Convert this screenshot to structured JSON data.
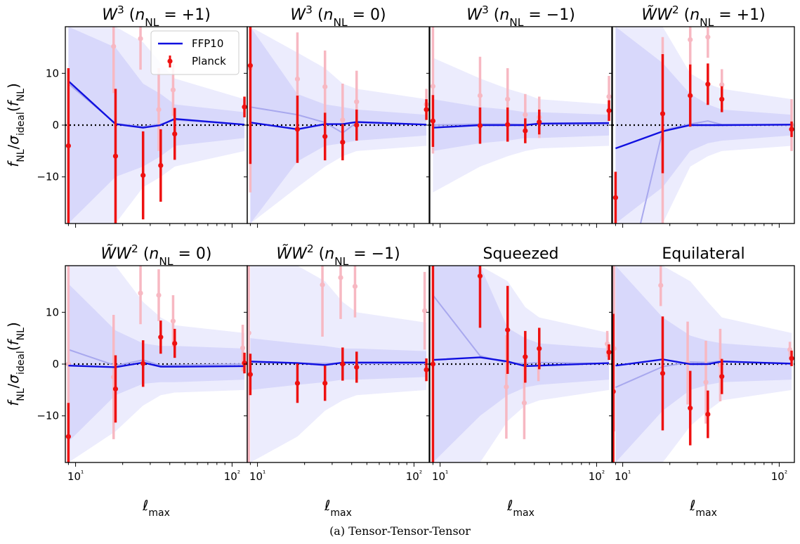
{
  "caption": "(a) Tensor-Tensor-Tensor",
  "colors": {
    "ffp10": "#1010e0",
    "ffp10_faint": "#a8a8ee",
    "band_inner": "#d8d8fb",
    "band_outer": "#ececfd",
    "planck": "#ee1111",
    "planck_faint": "#f7b8c2"
  },
  "chart_data": {
    "type": "scatter",
    "xscale": "log",
    "xlim": [
      8.6,
      125
    ],
    "ylim": [
      -19,
      19
    ],
    "xticks": [
      10,
      100
    ],
    "xtick_labels": [
      "10¹",
      "10²"
    ],
    "yticks": [
      -10,
      0,
      10
    ],
    "ytick_labels": [
      "−10",
      "0",
      "10"
    ],
    "xlabel": "ℓmax",
    "ylabel": "fNL/σideal(fNL)",
    "legend": {
      "position": "top-right of first panel",
      "entries": [
        "FFP10",
        "Planck"
      ]
    },
    "reference_line": 0,
    "panels": [
      {
        "title": "W³ (nNL = +1)",
        "ffp10": {
          "x": [
            9,
            18,
            27,
            35,
            43,
            120
          ],
          "y": [
            8.5,
            0.2,
            -0.5,
            0,
            1.2,
            0.1
          ]
        },
        "ffp10_faint": {
          "x": [
            9,
            18,
            27,
            35,
            43,
            120
          ],
          "y": [
            8,
            0.3,
            -0.3,
            0.2,
            1.0,
            0.1
          ]
        },
        "band_inner": {
          "x": [
            9,
            18,
            27,
            35,
            43,
            120
          ],
          "lo": [
            -19,
            -10,
            -8,
            -6,
            -4,
            -2.5
          ],
          "hi": [
            19,
            15,
            8,
            6,
            4,
            2.5
          ]
        },
        "band_outer": {
          "x": [
            9,
            18,
            27,
            35,
            43,
            120
          ],
          "lo": [
            -19,
            -19,
            -12,
            -10,
            -8,
            -5
          ],
          "hi": [
            19,
            19,
            16,
            12,
            9,
            5
          ]
        },
        "planck": {
          "x": [
            9,
            18,
            27,
            35,
            43,
            120
          ],
          "y": [
            -4,
            -6,
            -9.7,
            -7.8,
            -1.7,
            3.5
          ],
          "err": [
            15,
            13,
            8.5,
            7,
            5,
            2
          ]
        },
        "planck_faint": {
          "x": [
            17.5,
            26,
            34,
            42
          ],
          "y": [
            15.2,
            16.7,
            3,
            6.8
          ],
          "err": [
            9,
            6,
            8,
            5
          ]
        }
      },
      {
        "title": "W³ (nNL = 0)",
        "ffp10": {
          "x": [
            9,
            18,
            27,
            35,
            43,
            120
          ],
          "y": [
            0.5,
            -0.8,
            0.2,
            0.2,
            0.6,
            0.1
          ]
        },
        "ffp10_faint": {
          "x": [
            9,
            18,
            27,
            35,
            43,
            120
          ],
          "y": [
            3.5,
            2,
            0.5,
            -1.5,
            0.5,
            0.1
          ]
        },
        "band_inner": {
          "x": [
            9,
            18,
            27,
            35,
            43,
            120
          ],
          "lo": [
            -19,
            -7,
            -4,
            -3.5,
            -3,
            -2
          ],
          "hi": [
            19,
            6,
            4,
            3.5,
            3,
            2
          ]
        },
        "band_outer": {
          "x": [
            9,
            18,
            27,
            35,
            43,
            120
          ],
          "lo": [
            -19,
            -12,
            -8,
            -6,
            -5,
            -4
          ],
          "hi": [
            19,
            14,
            11,
            8,
            7,
            5
          ]
        },
        "planck": {
          "x": [
            9,
            18,
            27,
            35,
            43,
            120
          ],
          "y": [
            11.5,
            -0.8,
            -2.2,
            -3.3,
            0,
            3
          ],
          "err": [
            19,
            6.5,
            4.6,
            3.5,
            3,
            2
          ]
        },
        "planck_faint": {
          "x": [
            9,
            18,
            27,
            35,
            43,
            120
          ],
          "y": [
            11,
            8.9,
            7.4,
            1,
            4.5,
            4
          ],
          "err": [
            24,
            9,
            7,
            7,
            6,
            3
          ]
        }
      },
      {
        "title": "W³ (nNL = −1)",
        "ffp10": {
          "x": [
            9,
            18,
            27,
            35,
            43,
            120
          ],
          "y": [
            -0.5,
            0,
            0,
            0,
            0.3,
            0.4
          ]
        },
        "ffp10_faint": {
          "x": [
            9,
            18,
            27,
            35,
            43,
            120
          ],
          "y": [
            0,
            0.2,
            0.2,
            0.1,
            0.2,
            0.2
          ]
        },
        "band_inner": {
          "x": [
            9,
            18,
            27,
            35,
            43,
            120
          ],
          "lo": [
            -5,
            -3.5,
            -3,
            -2.5,
            -2.5,
            -2
          ],
          "hi": [
            5,
            3.5,
            3,
            2.5,
            2.5,
            2
          ]
        },
        "band_outer": {
          "x": [
            9,
            18,
            27,
            35,
            43,
            120
          ],
          "lo": [
            -13,
            -8,
            -6,
            -5,
            -4.5,
            -4
          ],
          "hi": [
            13,
            9,
            7,
            6,
            5,
            4
          ]
        },
        "planck": {
          "x": [
            9,
            18,
            27,
            35,
            43,
            120
          ],
          "y": [
            0.8,
            -0.1,
            0.1,
            -1.1,
            0.6,
            2.8
          ],
          "err": [
            5,
            3.5,
            3.3,
            2.4,
            2.4,
            2
          ]
        },
        "planck_faint": {
          "x": [
            9,
            18,
            27,
            35,
            43,
            120
          ],
          "y": [
            7.5,
            5.7,
            5,
            2,
            1.5,
            5.5
          ],
          "err": [
            13,
            7.5,
            6,
            4,
            4,
            4
          ]
        }
      },
      {
        "title": "W̃W² (nNL = +1)",
        "ffp10": {
          "x": [
            9,
            18,
            27,
            35,
            43,
            120
          ],
          "y": [
            -4.5,
            -1.2,
            0,
            0,
            0,
            0.1
          ]
        },
        "ffp10_faint": {
          "x": [
            13,
            18,
            27,
            35,
            43,
            120
          ],
          "y": [
            -19,
            -1,
            0.2,
            0.8,
            0.1,
            0
          ]
        },
        "band_inner": {
          "x": [
            9,
            18,
            27,
            35,
            43,
            120
          ],
          "lo": [
            -19,
            -12,
            -5,
            -3.5,
            -3,
            -2
          ],
          "hi": [
            19,
            12,
            6,
            4,
            3,
            2
          ]
        },
        "band_outer": {
          "x": [
            9,
            18,
            27,
            35,
            43,
            120
          ],
          "lo": [
            -19,
            -19,
            -8,
            -6,
            -5,
            -4
          ],
          "hi": [
            19,
            19,
            10,
            8,
            7,
            5
          ]
        },
        "planck": {
          "x": [
            9,
            18,
            27,
            35,
            43,
            120
          ],
          "y": [
            -14,
            2.2,
            5.7,
            7.9,
            5,
            -0.8
          ],
          "err": [
            5,
            11.5,
            6,
            4,
            2.5,
            1.5
          ]
        },
        "planck_faint": {
          "x": [
            18,
            27,
            35,
            43,
            120
          ],
          "y": [
            -1,
            16.5,
            17,
            7.8,
            0
          ],
          "err": [
            18,
            5,
            4,
            3,
            5
          ]
        }
      },
      {
        "title": "W̃W² (nNL = 0)",
        "ffp10": {
          "x": [
            9,
            18,
            27,
            35,
            43,
            120
          ],
          "y": [
            -0.3,
            -0.6,
            0.3,
            -0.5,
            -0.5,
            -0.4
          ]
        },
        "ffp10_faint": {
          "x": [
            9,
            18,
            27,
            35,
            43,
            120
          ],
          "y": [
            2.8,
            -0.3,
            0.8,
            -0.3,
            -0.2,
            0
          ]
        },
        "band_inner": {
          "x": [
            9,
            18,
            27,
            35,
            43,
            120
          ],
          "lo": [
            -15,
            -6,
            -3.8,
            -3.5,
            -3.5,
            -3
          ],
          "hi": [
            15.5,
            6.5,
            4,
            3.5,
            3.5,
            3
          ]
        },
        "band_outer": {
          "x": [
            9,
            18,
            27,
            35,
            43,
            120
          ],
          "lo": [
            -19,
            -13,
            -8,
            -6,
            -5.5,
            -5
          ],
          "hi": [
            19,
            19,
            12,
            9,
            7.5,
            6
          ]
        },
        "planck": {
          "x": [
            9,
            18,
            27,
            35,
            43,
            120
          ],
          "y": [
            -14,
            -4.8,
            0.1,
            5.2,
            4,
            0.2
          ],
          "err": [
            6.5,
            6.5,
            4.5,
            3.2,
            2.8,
            2
          ]
        },
        "planck_faint": {
          "x": [
            9,
            17.5,
            26,
            34,
            42,
            117
          ],
          "y": [
            0,
            -2.5,
            13.7,
            13.3,
            8.3,
            3.1
          ],
          "err": [
            19,
            12,
            6,
            5,
            5,
            4.5
          ]
        }
      },
      {
        "title": "W̃W² (nNL = −1)",
        "ffp10": {
          "x": [
            9,
            18,
            27,
            35,
            43,
            120
          ],
          "y": [
            0.5,
            0.2,
            -0.2,
            0.3,
            0.3,
            0.3
          ]
        },
        "ffp10_faint": {
          "x": [
            9,
            18,
            27,
            35,
            43,
            120
          ],
          "y": [
            0.3,
            0.2,
            0.1,
            0.2,
            0.1,
            0.1
          ]
        },
        "band_inner": {
          "x": [
            9,
            18,
            27,
            35,
            43,
            120
          ],
          "lo": [
            -5,
            -4,
            -3.5,
            -3,
            -3,
            -2.5
          ],
          "hi": [
            5,
            4,
            3.5,
            3,
            3,
            2.5
          ]
        },
        "band_outer": {
          "x": [
            9,
            18,
            27,
            35,
            43,
            120
          ],
          "lo": [
            -19,
            -14,
            -9,
            -7,
            -6,
            -5
          ],
          "hi": [
            19,
            19,
            16,
            12,
            10,
            8
          ]
        },
        "planck": {
          "x": [
            9,
            18,
            27,
            35,
            43,
            120
          ],
          "y": [
            -2,
            -3.7,
            -3.7,
            0,
            -0.6,
            -1.1
          ],
          "err": [
            4,
            3.8,
            3.4,
            3.2,
            3,
            2.2
          ]
        },
        "planck_faint": {
          "x": [
            8.8,
            26,
            34,
            42,
            117
          ],
          "y": [
            6,
            15.3,
            16.7,
            15,
            10.3
          ],
          "err": [
            25,
            10,
            8,
            6,
            7.5
          ]
        }
      },
      {
        "title": "Squeezed",
        "ffp10": {
          "x": [
            9,
            18,
            27,
            35,
            43,
            120
          ],
          "y": [
            0.8,
            1.3,
            0.5,
            -0.4,
            -0.3,
            0.2
          ]
        },
        "ffp10_faint": {
          "x": [
            9,
            18,
            27,
            35,
            43,
            120
          ],
          "y": [
            13.3,
            1.6,
            0.2,
            0.1,
            0.3,
            0.1
          ]
        },
        "band_inner": {
          "x": [
            9,
            18,
            27,
            35,
            43,
            120
          ],
          "lo": [
            -19,
            -10,
            -6,
            -4.5,
            -4,
            -3
          ],
          "hi": [
            19,
            19,
            7,
            5,
            4,
            3
          ]
        },
        "band_outer": {
          "x": [
            9,
            18,
            27,
            35,
            43,
            120
          ],
          "lo": [
            -19,
            -19,
            -11,
            -8,
            -7,
            -5
          ],
          "hi": [
            19,
            19,
            16,
            11,
            9,
            6
          ]
        },
        "planck": {
          "x": [
            9,
            18,
            27,
            35,
            43,
            120
          ],
          "y": [
            0,
            17,
            6.6,
            1.4,
            3,
            2.3
          ],
          "err": [
            19,
            10,
            8.5,
            5,
            4,
            1.5
          ]
        },
        "planck_faint": {
          "x": [
            26.5,
            34.5,
            42.5,
            117
          ],
          "y": [
            -4.4,
            -7.5,
            -0.3,
            3.9
          ],
          "err": [
            10,
            7,
            3,
            2.5
          ]
        }
      },
      {
        "title": "Equilateral",
        "ffp10": {
          "x": [
            9,
            18,
            27,
            35,
            43,
            120
          ],
          "y": [
            -0.3,
            0.9,
            0,
            0,
            0.5,
            0.1
          ]
        },
        "ffp10_faint": {
          "x": [
            9,
            18,
            27,
            35,
            43,
            120
          ],
          "y": [
            -4.5,
            -0.5,
            0.4,
            0.3,
            0.6,
            0
          ]
        },
        "band_inner": {
          "x": [
            9,
            18,
            27,
            35,
            43,
            120
          ],
          "lo": [
            -19,
            -9,
            -5,
            -4,
            -3.5,
            -3
          ],
          "hi": [
            19,
            9,
            5.5,
            4.5,
            4,
            3
          ]
        },
        "band_outer": {
          "x": [
            9,
            18,
            27,
            35,
            43,
            120
          ],
          "lo": [
            -19,
            -19,
            -12,
            -9,
            -7,
            -5
          ],
          "hi": [
            19,
            19,
            16,
            12,
            9,
            6
          ]
        },
        "planck": {
          "x": [
            8.7,
            18,
            27,
            35,
            43,
            120
          ],
          "y": [
            -5.3,
            -1.8,
            -8.5,
            -9.7,
            -2.4,
            1.1
          ],
          "err": [
            15,
            11,
            7.2,
            4.6,
            3.4,
            1.5
          ]
        },
        "planck_faint": {
          "x": [
            8.8,
            17.5,
            26,
            34,
            42,
            117
          ],
          "y": [
            3,
            15.2,
            0.2,
            -3.5,
            -0.2,
            2.8
          ],
          "err": [
            16,
            4,
            8,
            8,
            7,
            1.5
          ]
        }
      }
    ]
  }
}
